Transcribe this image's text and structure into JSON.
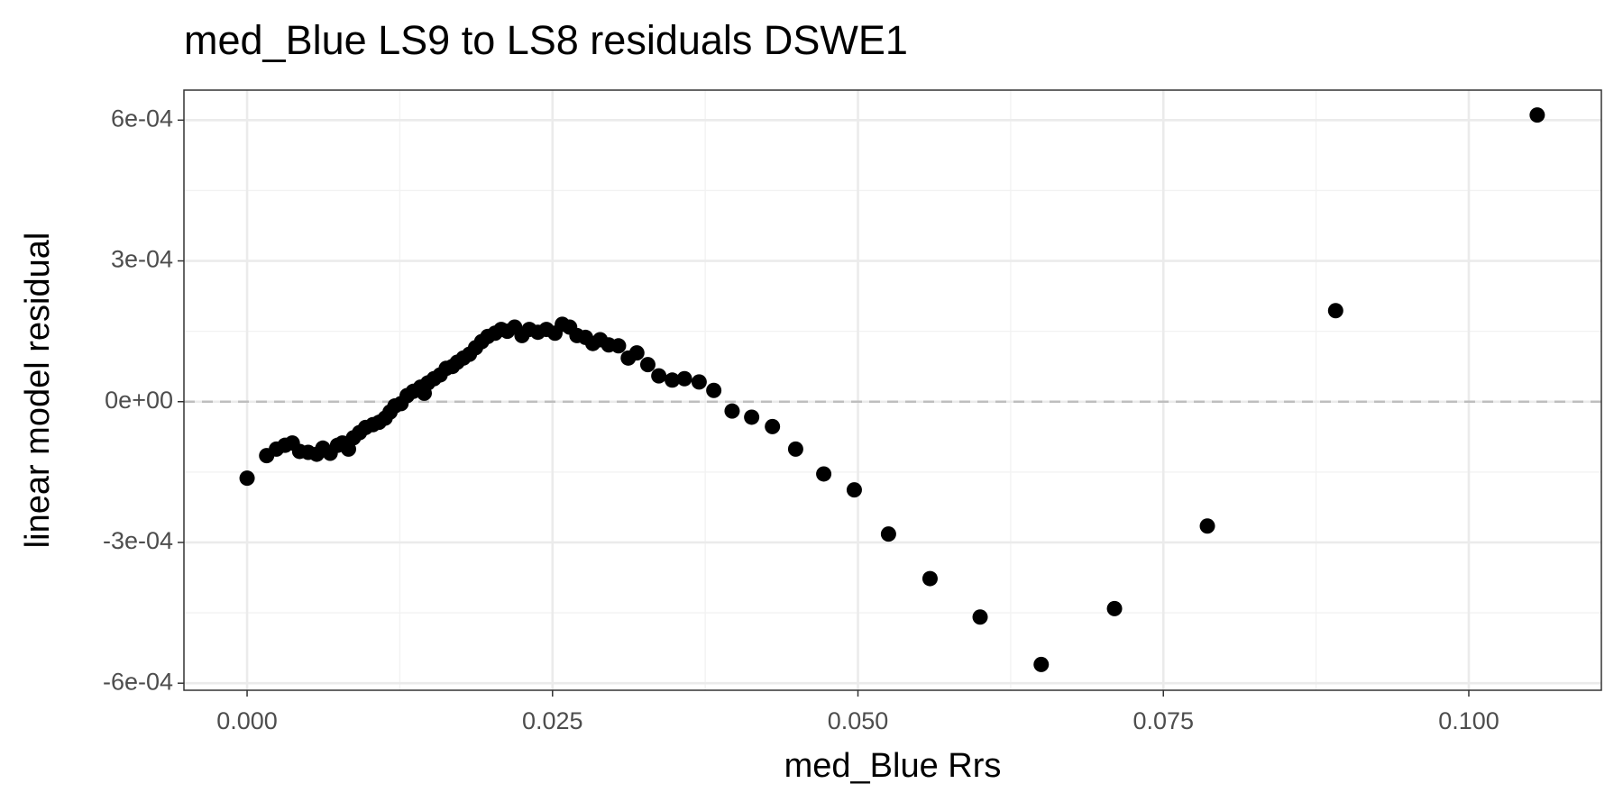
{
  "chart_data": {
    "type": "scatter",
    "title": "med_Blue LS9 to LS8 residuals DSWE1",
    "x_label": "med_Blue  Rrs",
    "y_label": "linear model residual",
    "color": "#000000",
    "grid": true,
    "minor_grid": true,
    "hline": 0,
    "xlim": [
      -0.00517,
      0.11085
    ],
    "ylim": [
      -0.000615,
      0.000664
    ],
    "xticks": [
      {
        "value": 0,
        "label": "0.000"
      },
      {
        "value": 0.025,
        "label": "0.025"
      },
      {
        "value": 0.05,
        "label": "0.050"
      },
      {
        "value": 0.075,
        "label": "0.075"
      },
      {
        "value": 0.1,
        "label": "0.100"
      }
    ],
    "yticks": [
      {
        "value": -0.0006,
        "label": "-6e-04"
      },
      {
        "value": -0.0003,
        "label": "-3e-04"
      },
      {
        "value": 0,
        "label": "0e+00"
      },
      {
        "value": 0.0003,
        "label": "3e-04"
      },
      {
        "value": 0.0006,
        "label": "6e-04"
      }
    ],
    "x": [
      0,
      0.0016,
      0.0024,
      0.0031,
      0.0037,
      0.0043,
      0.005,
      0.0057,
      0.0062,
      0.0068,
      0.0074,
      0.0078,
      0.0083,
      0.0087,
      0.0092,
      0.0097,
      0.0103,
      0.0108,
      0.0113,
      0.0117,
      0.0121,
      0.0126,
      0.0131,
      0.0136,
      0.0142,
      0.0145,
      0.0148,
      0.0153,
      0.0158,
      0.0163,
      0.0168,
      0.0172,
      0.0177,
      0.0182,
      0.0187,
      0.0192,
      0.0197,
      0.0203,
      0.0208,
      0.0213,
      0.0219,
      0.0225,
      0.0231,
      0.0238,
      0.0245,
      0.0252,
      0.0258,
      0.0264,
      0.027,
      0.0277,
      0.0283,
      0.0289,
      0.0296,
      0.0304,
      0.0312,
      0.0319,
      0.0328,
      0.0337,
      0.0348,
      0.0358,
      0.037,
      0.0382,
      0.0397,
      0.0413,
      0.043,
      0.0449,
      0.0472,
      0.0497,
      0.0525,
      0.0559,
      0.06,
      0.065,
      0.071,
      0.0786,
      0.0891,
      0.1056
    ],
    "values": [
      -0.000163,
      -0.000115,
      -0.000101,
      -9.3e-05,
      -8.8e-05,
      -0.000106,
      -0.000108,
      -0.000112,
      -9.9e-05,
      -0.00011,
      -9.3e-05,
      -8.8e-05,
      -0.000101,
      -7.7e-05,
      -6.6e-05,
      -5.5e-05,
      -4.9e-05,
      -4.4e-05,
      -3.5e-05,
      -2.2e-05,
      -9e-06,
      -4e-06,
      1.3e-05,
      2.2e-05,
      3.1e-05,
      1.8e-05,
      4e-05,
      4.9e-05,
      5.7e-05,
      7.1e-05,
      7.5e-05,
      8.4e-05,
      9.3e-05,
      0.000101,
      0.000115,
      0.000128,
      0.000139,
      0.000146,
      0.000154,
      0.00015,
      0.000159,
      0.000141,
      0.000154,
      0.000148,
      0.000154,
      0.000146,
      0.000165,
      0.000159,
      0.000141,
      0.000137,
      0.000124,
      0.000132,
      0.000121,
      0.000119,
      9.3e-05,
      0.000104,
      7.9e-05,
      5.5e-05,
      4.6e-05,
      4.9e-05,
      4.2e-05,
      2.4e-05,
      -2e-05,
      -3.3e-05,
      -5.3e-05,
      -0.000101,
      -0.000154,
      -0.000188,
      -0.000282,
      -0.000377,
      -0.000459,
      -0.00056,
      -0.000441,
      -0.000265,
      0.000194,
      0.000611
    ]
  }
}
